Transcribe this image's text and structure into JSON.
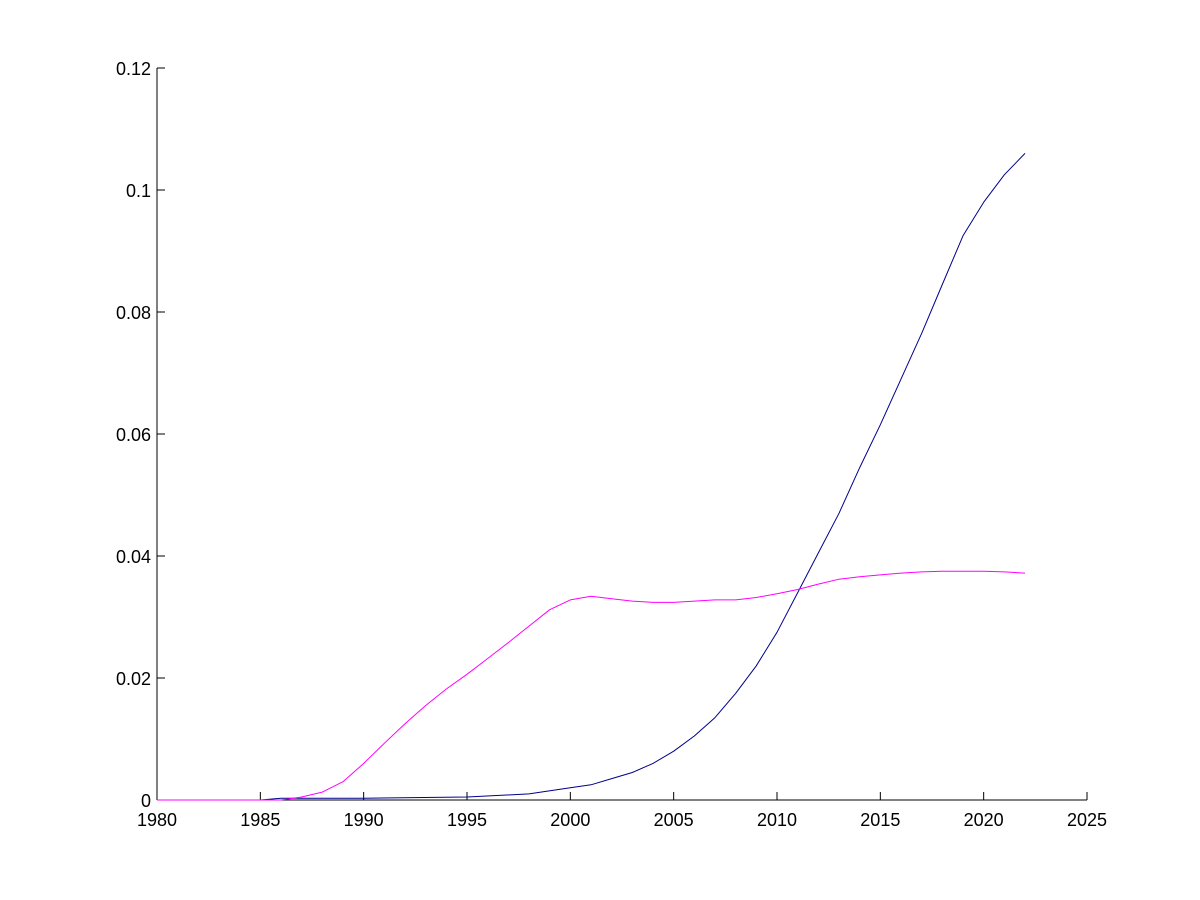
{
  "chart_data": {
    "type": "line",
    "title": "",
    "xlabel": "",
    "ylabel": "",
    "xlim": [
      1980,
      2025
    ],
    "ylim": [
      0,
      0.12
    ],
    "grid": false,
    "xticks": [
      1980,
      1985,
      1990,
      1995,
      2000,
      2005,
      2010,
      2015,
      2020,
      2025
    ],
    "yticks": [
      0,
      0.02,
      0.04,
      0.06,
      0.08,
      0.1,
      0.12
    ],
    "xtick_labels": [
      "1980",
      "1985",
      "1990",
      "1995",
      "2000",
      "2005",
      "2010",
      "2015",
      "2020",
      "2025"
    ],
    "ytick_labels": [
      "0",
      "0.02",
      "0.04",
      "0.06",
      "0.08",
      "0.1",
      "0.12"
    ],
    "series": [
      {
        "color": "#00008b",
        "x": [
          1980,
          1985,
          1986,
          1990,
          1995,
          1998,
          2000,
          2001,
          2002,
          2003,
          2004,
          2005,
          2006,
          2007,
          2008,
          2009,
          2010,
          2011,
          2012,
          2013,
          2014,
          2015,
          2016,
          2017,
          2018,
          2019,
          2020,
          2021,
          2022
        ],
        "values": [
          0,
          0,
          0.0003,
          0.0003,
          0.0005,
          0.001,
          0.002,
          0.0025,
          0.0035,
          0.0045,
          0.006,
          0.008,
          0.0105,
          0.0135,
          0.0175,
          0.022,
          0.0275,
          0.034,
          0.0405,
          0.047,
          0.0545,
          0.0615,
          0.069,
          0.0765,
          0.0845,
          0.0925,
          0.098,
          0.1025,
          0.106
        ]
      },
      {
        "color": "#ff00ff",
        "x": [
          1980,
          1985,
          1986,
          1987,
          1988,
          1989,
          1990,
          1991,
          1992,
          1993,
          1994,
          1995,
          1996,
          1997,
          1998,
          1999,
          2000,
          2001,
          2002,
          2003,
          2004,
          2005,
          2006,
          2007,
          2008,
          2009,
          2010,
          2011,
          2012,
          2013,
          2014,
          2015,
          2016,
          2017,
          2018,
          2019,
          2020,
          2021,
          2022
        ],
        "values": [
          0,
          0,
          0,
          0.0005,
          0.0013,
          0.003,
          0.006,
          0.0093,
          0.0125,
          0.0155,
          0.0182,
          0.0206,
          0.0232,
          0.0258,
          0.0285,
          0.0312,
          0.0328,
          0.0334,
          0.033,
          0.0326,
          0.0324,
          0.0324,
          0.0326,
          0.0328,
          0.0328,
          0.0332,
          0.0338,
          0.0345,
          0.0354,
          0.0362,
          0.0366,
          0.0369,
          0.0372,
          0.0374,
          0.0375,
          0.0375,
          0.0375,
          0.0374,
          0.0372
        ]
      }
    ]
  }
}
